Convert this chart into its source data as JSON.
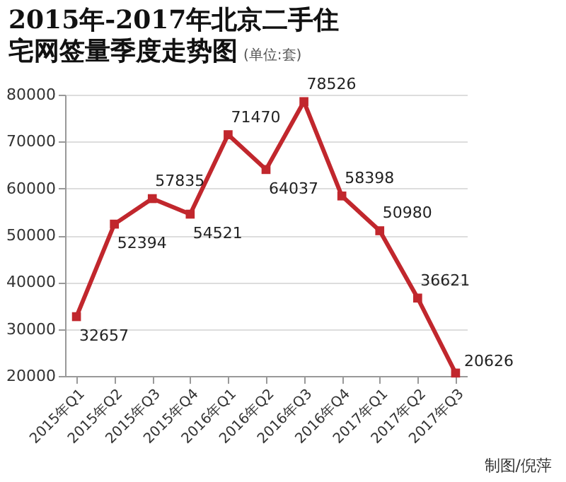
{
  "chart_data": {
    "type": "line",
    "title": "2015年-2017年北京二手住宅网签量季度走势图",
    "subtitle": "(单位:套)",
    "categories": [
      "2015年Q1",
      "2015年Q2",
      "2015年Q3",
      "2015年Q4",
      "2016年Q1",
      "2016年Q2",
      "2016年Q3",
      "2016年Q4",
      "2017年Q1",
      "2017年Q2",
      "2017年Q3"
    ],
    "series": [
      {
        "color": "#c1272d",
        "values": [
          32657,
          52394,
          57835,
          54521,
          71470,
          64037,
          78526,
          58398,
          50980,
          36621,
          20626
        ]
      }
    ],
    "ylim": [
      20000,
      80000
    ],
    "yticks": [
      20000,
      30000,
      40000,
      50000,
      60000,
      70000,
      80000
    ],
    "grid": "y",
    "marker": "square",
    "line_style": "solid",
    "data_labels": true,
    "legend": false,
    "annotations": [
      "制图/倪萍"
    ]
  }
}
